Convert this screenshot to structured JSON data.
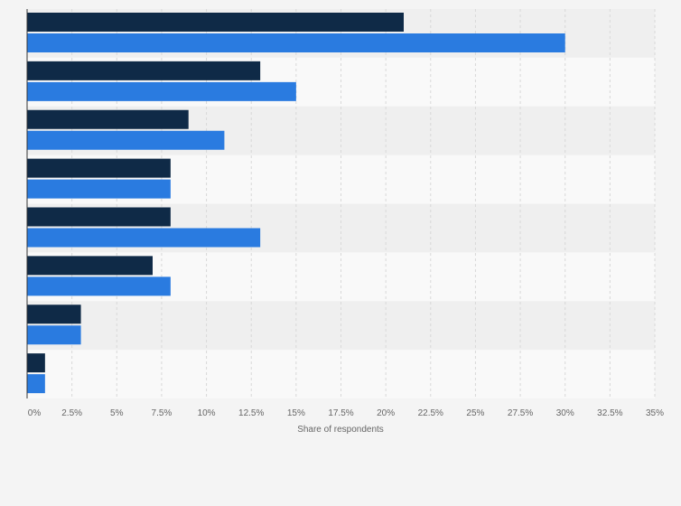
{
  "chart_data": {
    "type": "bar",
    "orientation": "horizontal",
    "title": "",
    "xlabel": "Share of respondents",
    "ylabel": "",
    "xlim": [
      0,
      35
    ],
    "x_ticks": [
      0,
      2.5,
      5,
      7.5,
      10,
      12.5,
      15,
      17.5,
      20,
      22.5,
      25,
      27.5,
      30,
      32.5,
      35
    ],
    "x_tick_labels": [
      "0%",
      "2.5%",
      "5%",
      "7.5%",
      "10%",
      "12.5%",
      "15%",
      "17.5%",
      "20%",
      "22.5%",
      "25%",
      "27.5%",
      "30%",
      "32.5%",
      "35%"
    ],
    "categories": [
      "",
      "",
      "",
      "",
      "",
      "",
      "",
      ""
    ],
    "series": [
      {
        "name": "",
        "color": "#0f2a47",
        "values": [
          21,
          13,
          9,
          8,
          8,
          7,
          3,
          1
        ]
      },
      {
        "name": "",
        "color": "#2a7be0",
        "values": [
          30,
          15,
          11,
          8,
          13,
          8,
          3,
          1
        ]
      }
    ],
    "grid": true,
    "legend": "none"
  },
  "colors": {
    "background": "#f4f4f4",
    "band_dark": "#efefef",
    "band_light": "#f9f9f9",
    "grid": "#d8d8d8",
    "axis": "#333333"
  }
}
